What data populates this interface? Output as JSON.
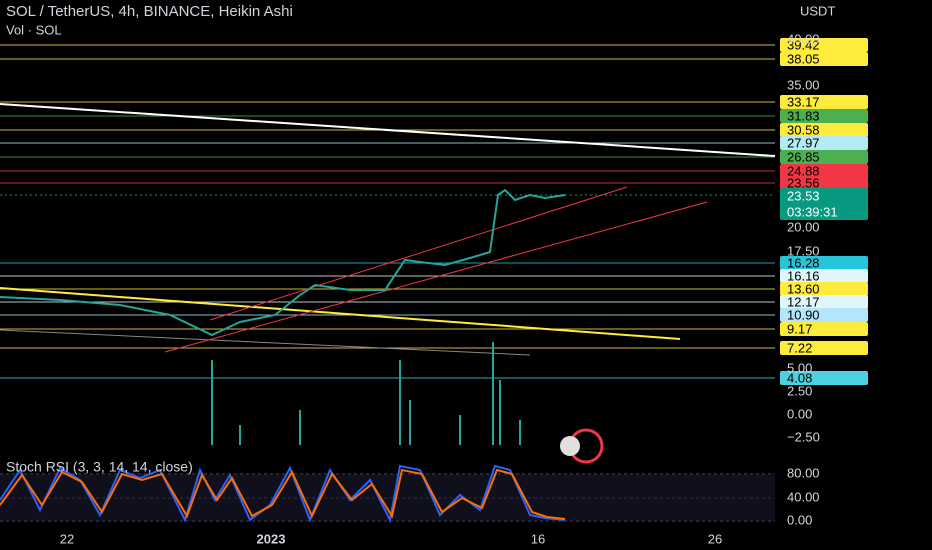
{
  "header": {
    "title": "SOL / TetherUS, 4h, BINANCE, Heikin Ashi",
    "volume": "Vol · SOL",
    "currency": "USDT"
  },
  "price_axis": [
    "40.00",
    "35.00",
    "20.00",
    "17.50"
  ],
  "volume_axis": [
    "5.00",
    "2.50",
    "0.00",
    "−2.50"
  ],
  "levels": [
    {
      "label": "39.42",
      "color": "#ffeb3b"
    },
    {
      "label": "38.05",
      "color": "#ffeb3b"
    },
    {
      "label": "33.17",
      "color": "#ffeb3b"
    },
    {
      "label": "31.83",
      "color": "#4caf50"
    },
    {
      "label": "30.58",
      "color": "#ffeb3b"
    },
    {
      "label": "27.97",
      "color": "#b2ebf2"
    },
    {
      "label": "26.85",
      "color": "#4caf50"
    },
    {
      "label": "24.88",
      "color": "#f23645"
    },
    {
      "label": "23.56",
      "color": "#f23645"
    },
    {
      "label": "16.28",
      "color": "#26c6da"
    },
    {
      "label": "16.16",
      "color": "#e0f7fa"
    },
    {
      "label": "13.60",
      "color": "#ffeb3b"
    },
    {
      "label": "12.17",
      "color": "#e0f7fa"
    },
    {
      "label": "10.90",
      "color": "#b3e5fc"
    },
    {
      "label": "9.17",
      "color": "#ffeb3b"
    },
    {
      "label": "7.22",
      "color": "#ffeb3b"
    },
    {
      "label": "4.08",
      "color": "#4dd0e1"
    }
  ],
  "current": {
    "price": "23.53",
    "countdown": "03:39:31",
    "color": "#089981"
  },
  "time_axis": [
    "22",
    "2023",
    "16",
    "26"
  ],
  "stoch": {
    "title": "Stoch RSI (3, 3, 14, 14, close)",
    "axis": [
      "80.00",
      "40.00",
      "0.00"
    ]
  }
}
